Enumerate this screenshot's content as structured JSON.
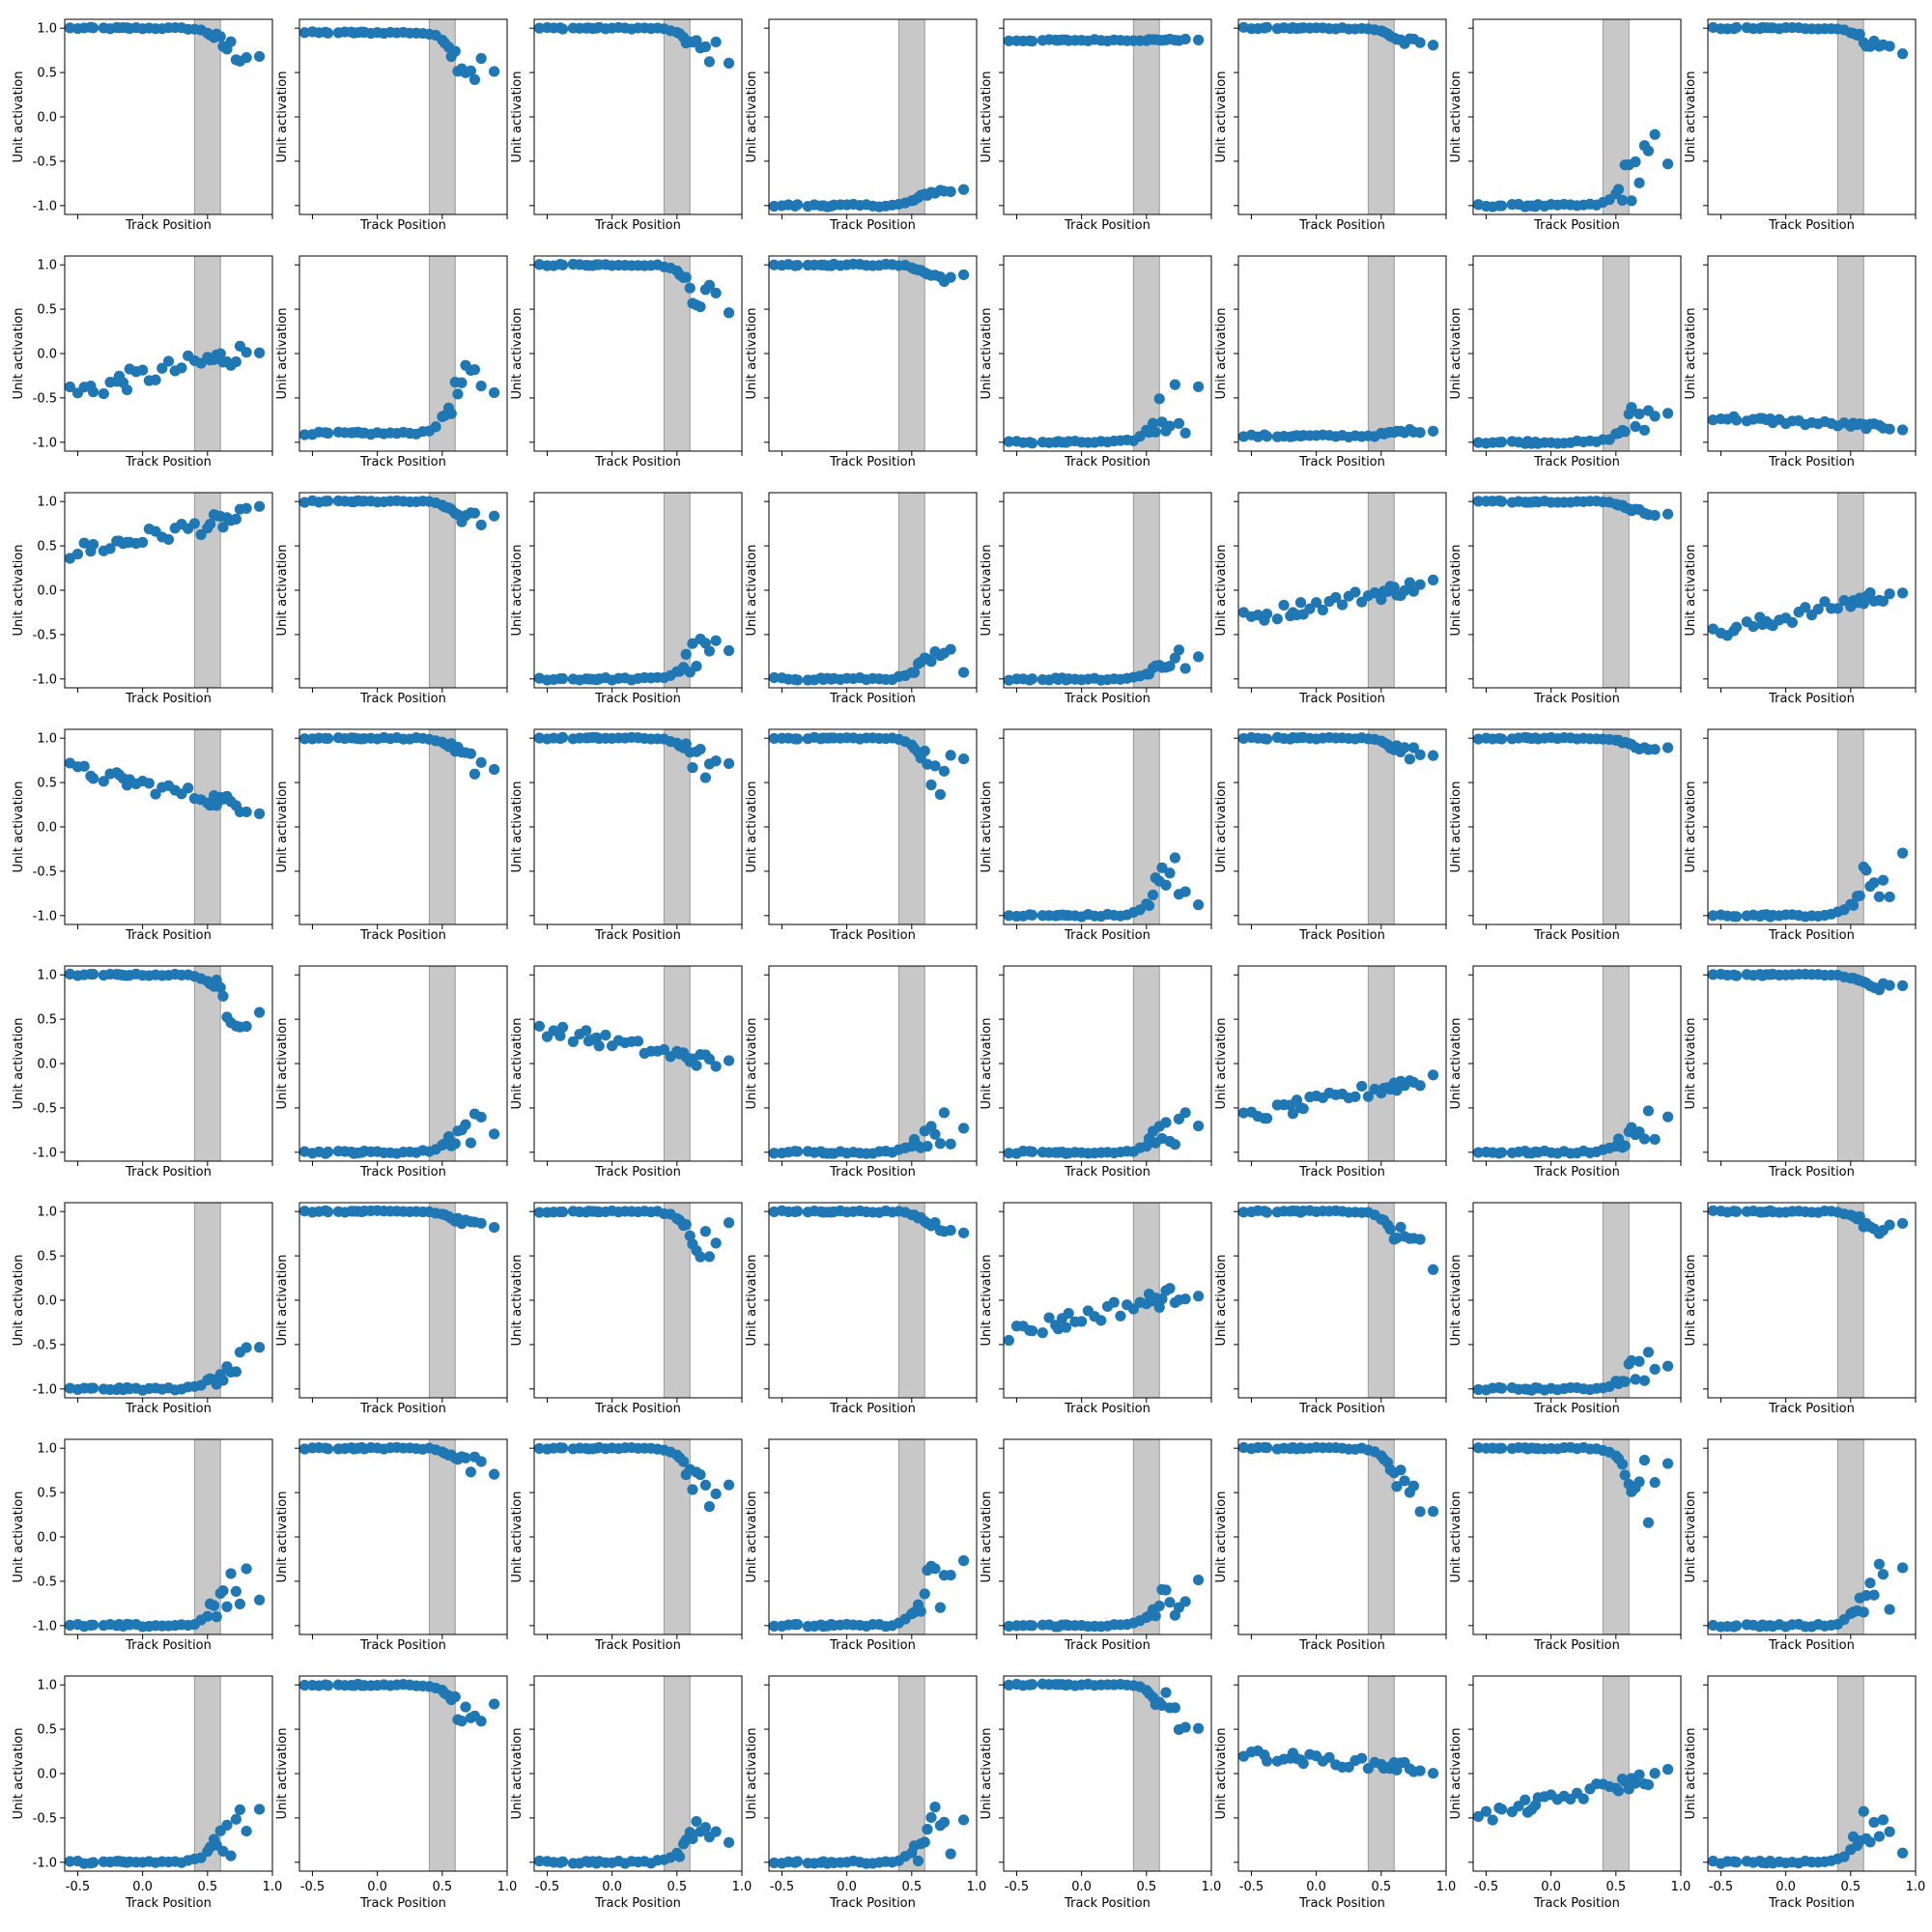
{
  "chart_data": {
    "type": "scatter",
    "layout": "8x8 grid of small multiples",
    "xlabel": "Track Position",
    "ylabel": "Unit activation",
    "xlim": [
      -0.6,
      1.0
    ],
    "ylim": [
      -1.1,
      1.1
    ],
    "xticks": [
      -0.5,
      0.0,
      0.5,
      1.0
    ],
    "yticks": [
      -1.0,
      -0.5,
      0.0,
      0.5,
      1.0
    ],
    "xtick_labels_shown_on": "bottom row only",
    "ytick_labels_shown_on": "first column only",
    "highlight_band": {
      "x_from": 0.4,
      "x_to": 0.6,
      "color": "#c8c8c8"
    },
    "marker_color": "#1f77b4",
    "x": [
      -0.56,
      -0.5,
      -0.45,
      -0.4,
      -0.38,
      -0.3,
      -0.25,
      -0.2,
      -0.18,
      -0.15,
      -0.12,
      -0.1,
      -0.05,
      0.0,
      0.05,
      0.1,
      0.15,
      0.2,
      0.25,
      0.3,
      0.35,
      0.4,
      0.45,
      0.5,
      0.52,
      0.55,
      0.57,
      0.6,
      0.62,
      0.65,
      0.68,
      0.72,
      0.75,
      0.8,
      0.9
    ],
    "panels": [
      {
        "row": 1,
        "col": 1,
        "trend": "high_drop",
        "start": 1.0,
        "end": 0.72,
        "spread": 0.16
      },
      {
        "row": 1,
        "col": 2,
        "trend": "high_drop",
        "start": 0.95,
        "end": 0.52,
        "spread": 0.22
      },
      {
        "row": 1,
        "col": 3,
        "trend": "high_drop",
        "start": 1.0,
        "end": 0.72,
        "spread": 0.14
      },
      {
        "row": 1,
        "col": 4,
        "trend": "low_rise",
        "start": -1.0,
        "end": -0.83,
        "spread": 0.03
      },
      {
        "row": 1,
        "col": 5,
        "trend": "flat",
        "start": 0.86,
        "end": 0.87,
        "spread": 0.0
      },
      {
        "row": 1,
        "col": 6,
        "trend": "high_drop",
        "start": 1.0,
        "end": 0.82,
        "spread": 0.06
      },
      {
        "row": 1,
        "col": 7,
        "trend": "low_rise",
        "start": -1.0,
        "end": -0.55,
        "spread": 0.4
      },
      {
        "row": 1,
        "col": 8,
        "trend": "high_drop",
        "start": 1.0,
        "end": 0.78,
        "spread": 0.09
      },
      {
        "row": 2,
        "col": 1,
        "trend": "linear",
        "start": -0.45,
        "end": 0.05,
        "spread": 0.12
      },
      {
        "row": 2,
        "col": 2,
        "trend": "low_rise",
        "start": -0.9,
        "end": -0.3,
        "spread": 0.25
      },
      {
        "row": 2,
        "col": 3,
        "trend": "high_drop",
        "start": 1.0,
        "end": 0.6,
        "spread": 0.25
      },
      {
        "row": 2,
        "col": 4,
        "trend": "high_drop",
        "start": 1.0,
        "end": 0.85,
        "spread": 0.05
      },
      {
        "row": 2,
        "col": 5,
        "trend": "low_rise",
        "start": -1.0,
        "end": -0.55,
        "spread": 0.35
      },
      {
        "row": 2,
        "col": 6,
        "trend": "low_rise",
        "start": -0.93,
        "end": -0.87,
        "spread": 0.02
      },
      {
        "row": 2,
        "col": 7,
        "trend": "low_rise",
        "start": -1.0,
        "end": -0.7,
        "spread": 0.25
      },
      {
        "row": 2,
        "col": 8,
        "trend": "linear",
        "start": -0.72,
        "end": -0.84,
        "spread": 0.03
      },
      {
        "row": 3,
        "col": 1,
        "trend": "linear",
        "start": 0.42,
        "end": 0.86,
        "spread": 0.1
      },
      {
        "row": 3,
        "col": 2,
        "trend": "high_drop",
        "start": 1.0,
        "end": 0.78,
        "spread": 0.1
      },
      {
        "row": 3,
        "col": 3,
        "trend": "low_rise",
        "start": -1.0,
        "end": -0.7,
        "spread": 0.25
      },
      {
        "row": 3,
        "col": 4,
        "trend": "low_rise",
        "start": -1.0,
        "end": -0.78,
        "spread": 0.15
      },
      {
        "row": 3,
        "col": 5,
        "trend": "low_rise",
        "start": -1.0,
        "end": -0.78,
        "spread": 0.15
      },
      {
        "row": 3,
        "col": 6,
        "trend": "linear",
        "start": -0.32,
        "end": 0.08,
        "spread": 0.08
      },
      {
        "row": 3,
        "col": 7,
        "trend": "high_drop",
        "start": 1.0,
        "end": 0.87,
        "spread": 0.03
      },
      {
        "row": 3,
        "col": 8,
        "trend": "linear",
        "start": -0.5,
        "end": 0.0,
        "spread": 0.08
      },
      {
        "row": 4,
        "col": 1,
        "trend": "linear",
        "start": 0.65,
        "end": 0.2,
        "spread": 0.08
      },
      {
        "row": 4,
        "col": 2,
        "trend": "high_drop",
        "start": 1.0,
        "end": 0.72,
        "spread": 0.16
      },
      {
        "row": 4,
        "col": 3,
        "trend": "high_drop",
        "start": 1.0,
        "end": 0.68,
        "spread": 0.2
      },
      {
        "row": 4,
        "col": 4,
        "trend": "high_drop",
        "start": 1.0,
        "end": 0.58,
        "spread": 0.27
      },
      {
        "row": 4,
        "col": 5,
        "trend": "low_rise",
        "start": -1.0,
        "end": -0.55,
        "spread": 0.42
      },
      {
        "row": 4,
        "col": 6,
        "trend": "high_drop",
        "start": 1.0,
        "end": 0.82,
        "spread": 0.08
      },
      {
        "row": 4,
        "col": 7,
        "trend": "high_drop",
        "start": 1.0,
        "end": 0.87,
        "spread": 0.03
      },
      {
        "row": 4,
        "col": 8,
        "trend": "low_rise",
        "start": -1.0,
        "end": -0.55,
        "spread": 0.35
      },
      {
        "row": 5,
        "col": 1,
        "trend": "high_drop",
        "start": 1.0,
        "end": 0.62,
        "spread": 0.28
      },
      {
        "row": 5,
        "col": 2,
        "trend": "low_rise",
        "start": -1.0,
        "end": -0.72,
        "spread": 0.2
      },
      {
        "row": 5,
        "col": 3,
        "trend": "linear",
        "start": 0.4,
        "end": -0.02,
        "spread": 0.08
      },
      {
        "row": 5,
        "col": 4,
        "trend": "low_rise",
        "start": -1.0,
        "end": -0.72,
        "spread": 0.2
      },
      {
        "row": 5,
        "col": 5,
        "trend": "low_rise",
        "start": -1.0,
        "end": -0.72,
        "spread": 0.2
      },
      {
        "row": 5,
        "col": 6,
        "trend": "linear",
        "start": -0.62,
        "end": -0.15,
        "spread": 0.08
      },
      {
        "row": 5,
        "col": 7,
        "trend": "low_rise",
        "start": -1.0,
        "end": -0.72,
        "spread": 0.2
      },
      {
        "row": 5,
        "col": 8,
        "trend": "high_drop",
        "start": 1.0,
        "end": 0.84,
        "spread": 0.07
      },
      {
        "row": 6,
        "col": 1,
        "trend": "low_rise",
        "start": -1.0,
        "end": -0.68,
        "spread": 0.24
      },
      {
        "row": 6,
        "col": 2,
        "trend": "high_drop",
        "start": 1.0,
        "end": 0.84,
        "spread": 0.06
      },
      {
        "row": 6,
        "col": 3,
        "trend": "high_drop",
        "start": 1.0,
        "end": 0.6,
        "spread": 0.3
      },
      {
        "row": 6,
        "col": 4,
        "trend": "high_drop",
        "start": 1.0,
        "end": 0.82,
        "spread": 0.07
      },
      {
        "row": 6,
        "col": 5,
        "trend": "linear",
        "start": -0.38,
        "end": 0.12,
        "spread": 0.1
      },
      {
        "row": 6,
        "col": 6,
        "trend": "high_drop",
        "start": 1.0,
        "end": 0.58,
        "spread": 0.3
      },
      {
        "row": 6,
        "col": 7,
        "trend": "low_rise",
        "start": -1.0,
        "end": -0.72,
        "spread": 0.2
      },
      {
        "row": 6,
        "col": 8,
        "trend": "high_drop",
        "start": 1.0,
        "end": 0.8,
        "spread": 0.1
      },
      {
        "row": 7,
        "col": 1,
        "trend": "low_rise",
        "start": -1.0,
        "end": -0.62,
        "spread": 0.3
      },
      {
        "row": 7,
        "col": 2,
        "trend": "high_drop",
        "start": 1.0,
        "end": 0.8,
        "spread": 0.1
      },
      {
        "row": 7,
        "col": 3,
        "trend": "high_drop",
        "start": 1.0,
        "end": 0.6,
        "spread": 0.3
      },
      {
        "row": 7,
        "col": 4,
        "trend": "low_rise",
        "start": -1.0,
        "end": -0.55,
        "spread": 0.4
      },
      {
        "row": 7,
        "col": 5,
        "trend": "low_rise",
        "start": -1.0,
        "end": -0.68,
        "spread": 0.25
      },
      {
        "row": 7,
        "col": 6,
        "trend": "high_drop",
        "start": 1.0,
        "end": 0.55,
        "spread": 0.35
      },
      {
        "row": 7,
        "col": 7,
        "trend": "high_drop",
        "start": 1.0,
        "end": 0.5,
        "spread": 0.4
      },
      {
        "row": 7,
        "col": 8,
        "trend": "low_rise",
        "start": -1.0,
        "end": -0.55,
        "spread": 0.35
      },
      {
        "row": 8,
        "col": 1,
        "trend": "low_rise",
        "start": -1.0,
        "end": -0.58,
        "spread": 0.35
      },
      {
        "row": 8,
        "col": 2,
        "trend": "high_drop",
        "start": 1.0,
        "end": 0.65,
        "spread": 0.25
      },
      {
        "row": 8,
        "col": 3,
        "trend": "low_rise",
        "start": -1.0,
        "end": -0.68,
        "spread": 0.22
      },
      {
        "row": 8,
        "col": 4,
        "trend": "low_rise",
        "start": -1.0,
        "end": -0.62,
        "spread": 0.35
      },
      {
        "row": 8,
        "col": 5,
        "trend": "high_drop",
        "start": 1.0,
        "end": 0.65,
        "spread": 0.25
      },
      {
        "row": 8,
        "col": 6,
        "trend": "linear",
        "start": 0.22,
        "end": 0.05,
        "spread": 0.06
      },
      {
        "row": 8,
        "col": 7,
        "trend": "linear",
        "start": -0.5,
        "end": 0.0,
        "spread": 0.08
      },
      {
        "row": 8,
        "col": 8,
        "trend": "low_rise",
        "start": -1.0,
        "end": -0.52,
        "spread": 0.4
      }
    ]
  }
}
